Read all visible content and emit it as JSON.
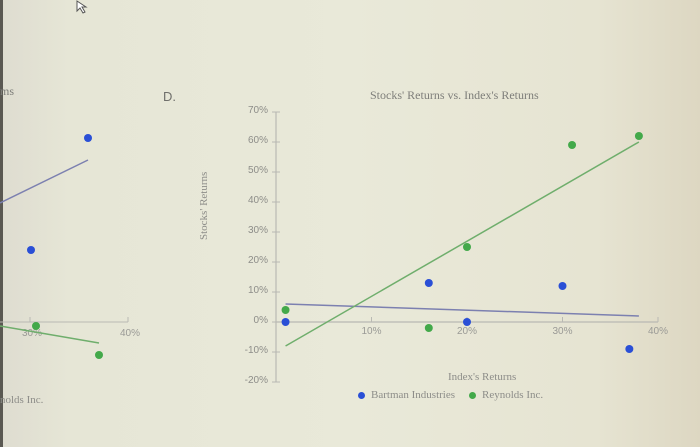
{
  "option_label": "D.",
  "left_fragment": {
    "title_fragment": "ms",
    "x_tick_30": "30%",
    "x_tick_40": "40%",
    "legend_fragment": "nolds Inc."
  },
  "colors": {
    "bartman": "#2a4fd6",
    "reynolds": "#43a94a",
    "bartman_line": "#7c80b0",
    "reynolds_line": "#6fae6c",
    "axis": "#b9b9b3"
  },
  "chart_data": {
    "type": "scatter",
    "title": "Stocks' Returns vs. Index's Returns",
    "xlabel": "Index's Returns",
    "ylabel": "Stocks' Returns",
    "xlim": [
      0,
      40
    ],
    "ylim": [
      -20,
      70
    ],
    "x_ticks": [
      "10%",
      "20%",
      "30%",
      "40%"
    ],
    "y_ticks": [
      "70%",
      "60%",
      "50%",
      "40%",
      "30%",
      "20%",
      "10%",
      "0%",
      "-10%",
      "-20%"
    ],
    "grid": false,
    "legend_position": "bottom",
    "series": [
      {
        "name": "Bartman Industries",
        "color": "#2a4fd6",
        "points": [
          [
            1,
            0
          ],
          [
            16,
            13
          ],
          [
            20,
            0
          ],
          [
            30,
            12
          ],
          [
            37,
            -9
          ]
        ],
        "trendline": [
          [
            1,
            6
          ],
          [
            38,
            2
          ]
        ]
      },
      {
        "name": "Reynolds Inc.",
        "color": "#43a94a",
        "points": [
          [
            1,
            4
          ],
          [
            16,
            -2
          ],
          [
            20,
            25
          ],
          [
            31,
            59
          ],
          [
            38,
            62
          ]
        ],
        "trendline": [
          [
            1,
            -8
          ],
          [
            38,
            60
          ]
        ]
      }
    ]
  }
}
